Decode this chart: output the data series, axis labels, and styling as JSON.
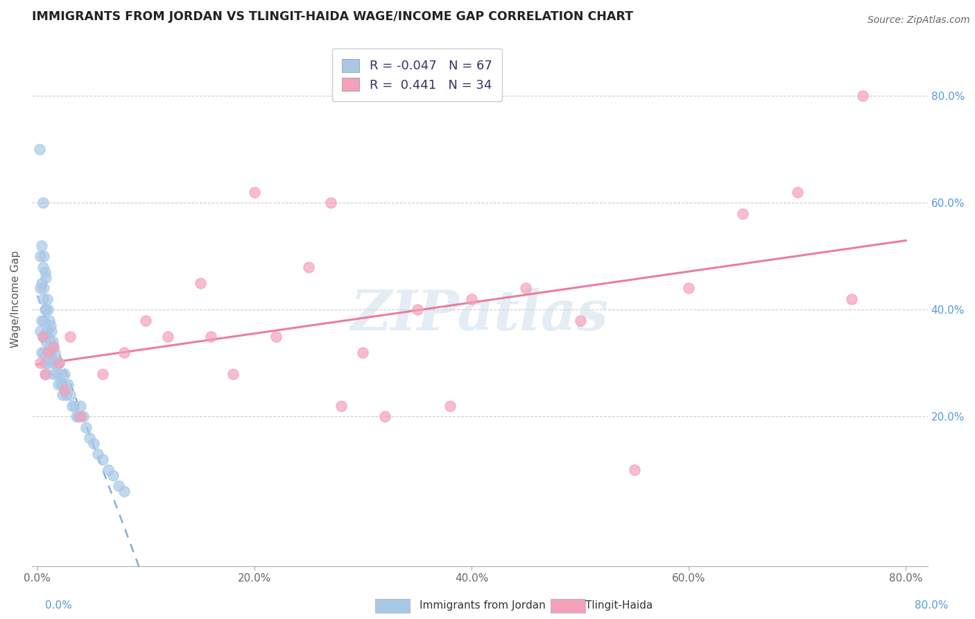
{
  "title": "IMMIGRANTS FROM JORDAN VS TLINGIT-HAIDA WAGE/INCOME GAP CORRELATION CHART",
  "source": "Source: ZipAtlas.com",
  "ylabel": "Wage/Income Gap",
  "legend_label_1": "Immigrants from Jordan",
  "legend_label_2": "Tlingit-Haida",
  "r1": "-0.047",
  "n1": 67,
  "r2": "0.441",
  "n2": 34,
  "xlim": [
    -0.005,
    0.82
  ],
  "ylim": [
    -0.08,
    0.92
  ],
  "xtick_values": [
    0.0,
    0.2,
    0.4,
    0.6,
    0.8
  ],
  "xtick_labels": [
    "0.0%",
    "20.0%",
    "40.0%",
    "60.0%",
    "80.0%"
  ],
  "ytick_right_values": [
    0.2,
    0.4,
    0.6,
    0.8
  ],
  "ytick_right_labels": [
    "20.0%",
    "40.0%",
    "60.0%",
    "80.0%"
  ],
  "color_jordan": "#a8c8e8",
  "color_tlingit": "#f4a0b8",
  "color_jordan_line": "#6699cc",
  "color_tlingit_line": "#e87090",
  "watermark": "ZIPatlas",
  "watermark_color": "#c5d8ea",
  "jordan_x": [
    0.002,
    0.003,
    0.003,
    0.003,
    0.004,
    0.004,
    0.004,
    0.004,
    0.005,
    0.005,
    0.005,
    0.005,
    0.006,
    0.006,
    0.006,
    0.006,
    0.007,
    0.007,
    0.007,
    0.007,
    0.008,
    0.008,
    0.008,
    0.008,
    0.009,
    0.009,
    0.01,
    0.01,
    0.01,
    0.011,
    0.011,
    0.012,
    0.012,
    0.013,
    0.013,
    0.014,
    0.014,
    0.015,
    0.015,
    0.016,
    0.017,
    0.018,
    0.019,
    0.02,
    0.021,
    0.022,
    0.023,
    0.024,
    0.025,
    0.026,
    0.028,
    0.03,
    0.032,
    0.034,
    0.036,
    0.038,
    0.04,
    0.042,
    0.045,
    0.048,
    0.052,
    0.056,
    0.06,
    0.065,
    0.07,
    0.075,
    0.08
  ],
  "jordan_y": [
    0.7,
    0.5,
    0.44,
    0.36,
    0.52,
    0.45,
    0.38,
    0.32,
    0.6,
    0.48,
    0.42,
    0.35,
    0.5,
    0.44,
    0.38,
    0.32,
    0.47,
    0.4,
    0.35,
    0.3,
    0.46,
    0.4,
    0.34,
    0.28,
    0.42,
    0.36,
    0.4,
    0.35,
    0.3,
    0.38,
    0.33,
    0.37,
    0.32,
    0.36,
    0.31,
    0.34,
    0.3,
    0.33,
    0.28,
    0.32,
    0.3,
    0.28,
    0.26,
    0.3,
    0.28,
    0.26,
    0.24,
    0.26,
    0.28,
    0.24,
    0.26,
    0.24,
    0.22,
    0.22,
    0.2,
    0.2,
    0.22,
    0.2,
    0.18,
    0.16,
    0.15,
    0.13,
    0.12,
    0.1,
    0.09,
    0.07,
    0.06
  ],
  "tlingit_x": [
    0.003,
    0.005,
    0.007,
    0.01,
    0.015,
    0.02,
    0.025,
    0.03,
    0.04,
    0.06,
    0.08,
    0.1,
    0.12,
    0.15,
    0.16,
    0.18,
    0.2,
    0.22,
    0.25,
    0.27,
    0.28,
    0.3,
    0.32,
    0.35,
    0.38,
    0.4,
    0.45,
    0.5,
    0.55,
    0.6,
    0.65,
    0.7,
    0.75,
    0.76
  ],
  "tlingit_y": [
    0.3,
    0.35,
    0.28,
    0.32,
    0.33,
    0.3,
    0.25,
    0.35,
    0.2,
    0.28,
    0.32,
    0.38,
    0.35,
    0.45,
    0.35,
    0.28,
    0.62,
    0.35,
    0.48,
    0.6,
    0.22,
    0.32,
    0.2,
    0.4,
    0.22,
    0.42,
    0.44,
    0.38,
    0.1,
    0.44,
    0.58,
    0.62,
    0.42,
    0.8
  ]
}
